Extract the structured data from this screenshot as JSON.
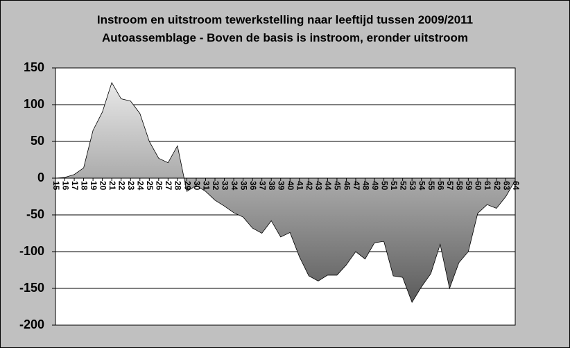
{
  "chart_data": {
    "type": "area",
    "title": "Instroom en uitstroom tewerkstelling naar leeftijd tussen 2009/2011",
    "subtitle": "Autoassemblage - Boven de basis is instroom, eronder uitstroom",
    "categories": [
      "15",
      "16",
      "17",
      "18",
      "19",
      "20",
      "21",
      "22",
      "23",
      "24",
      "25",
      "26",
      "27",
      "28",
      "29",
      "30",
      "31",
      "32",
      "33",
      "34",
      "35",
      "36",
      "37",
      "38",
      "39",
      "40",
      "41",
      "42",
      "43",
      "44",
      "45",
      "46",
      "47",
      "48",
      "49",
      "50",
      "51",
      "52",
      "53",
      "54",
      "55",
      "56",
      "57",
      "58",
      "59",
      "60",
      "61",
      "62",
      "63",
      "64"
    ],
    "values": [
      0,
      1,
      5,
      14,
      65,
      90,
      130,
      108,
      105,
      88,
      50,
      27,
      21,
      44,
      -18,
      -10,
      -18,
      -30,
      -38,
      -47,
      -53,
      -68,
      -75,
      -58,
      -80,
      -74,
      -107,
      -133,
      -140,
      -132,
      -132,
      -118,
      -100,
      -110,
      -88,
      -86,
      -133,
      -135,
      -169,
      -148,
      -130,
      -90,
      -150,
      -115,
      -100,
      -48,
      -36,
      -41,
      -25,
      -3
    ],
    "ylim": [
      -200,
      150
    ],
    "yticks": [
      -200,
      -150,
      -100,
      -50,
      0,
      50,
      100,
      150
    ],
    "grid": true
  }
}
